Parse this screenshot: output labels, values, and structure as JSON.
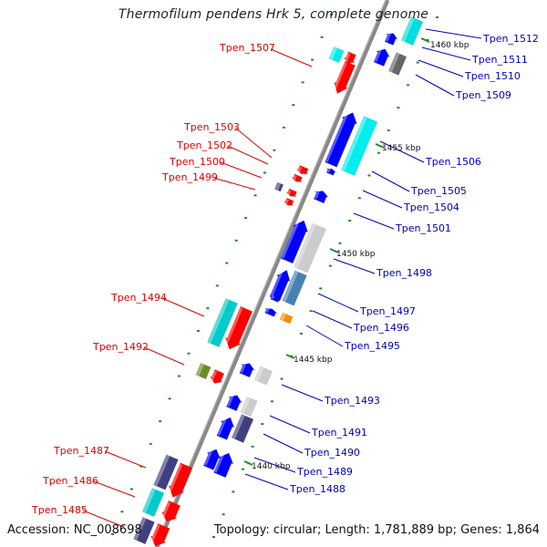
{
  "title": "Thermofilum pendens Hrk 5, complete genome",
  "accession": "Accession: NC_008698",
  "summary": "Topology: circular; Length: 1,781,889 bp; Genes: 1,864",
  "colors": {
    "forward_label": "#dd0000",
    "reverse_label": "#0000bb",
    "tick": "#228b22",
    "backbone": "#888888"
  },
  "scale_labels": [
    "1460 kbp",
    "1455 kbp",
    "1450 kbp",
    "1445 kbp",
    "1440 kbp"
  ],
  "forward_genes": [
    {
      "name": "Tpen_1507",
      "color": "#ff0000"
    },
    {
      "name": "Tpen_1503",
      "color": "#ff0000"
    },
    {
      "name": "Tpen_1502",
      "color": "#ff0000"
    },
    {
      "name": "Tpen_1500",
      "color": "#ff0000"
    },
    {
      "name": "Tpen_1499",
      "color": "#ff0000"
    },
    {
      "name": "Tpen_1494",
      "color": "#ff0000"
    },
    {
      "name": "Tpen_1492",
      "color": "#ff0000"
    },
    {
      "name": "Tpen_1487",
      "color": "#ff0000"
    },
    {
      "name": "Tpen_1486",
      "color": "#ff0000"
    },
    {
      "name": "Tpen_1485",
      "color": "#ff0000"
    }
  ],
  "reverse_genes": [
    {
      "name": "Tpen_1512",
      "color": "#00dddd"
    },
    {
      "name": "Tpen_1511",
      "color": "#0000ff"
    },
    {
      "name": "Tpen_1510",
      "color": "#666666"
    },
    {
      "name": "Tpen_1509",
      "color": "#0000ff"
    },
    {
      "name": "Tpen_1506",
      "color": "#00eeee"
    },
    {
      "name": "Tpen_1505",
      "color": "#0000ff"
    },
    {
      "name": "Tpen_1504",
      "color": "#0000ff"
    },
    {
      "name": "Tpen_1501",
      "color": "#0000ff"
    },
    {
      "name": "Tpen_1498",
      "color": "#cccccc"
    },
    {
      "name": "Tpen_1497",
      "color": "#4682b4"
    },
    {
      "name": "Tpen_1496",
      "color": "#0000ff"
    },
    {
      "name": "Tpen_1495",
      "color": "#ff8c00"
    },
    {
      "name": "Tpen_1493",
      "color": "#cccccc"
    },
    {
      "name": "Tpen_1491",
      "color": "#0000ff"
    },
    {
      "name": "Tpen_1490",
      "color": "#0000ff"
    },
    {
      "name": "Tpen_1489",
      "color": "#0000ff"
    },
    {
      "name": "Tpen_1488",
      "color": "#0000ff"
    }
  ]
}
